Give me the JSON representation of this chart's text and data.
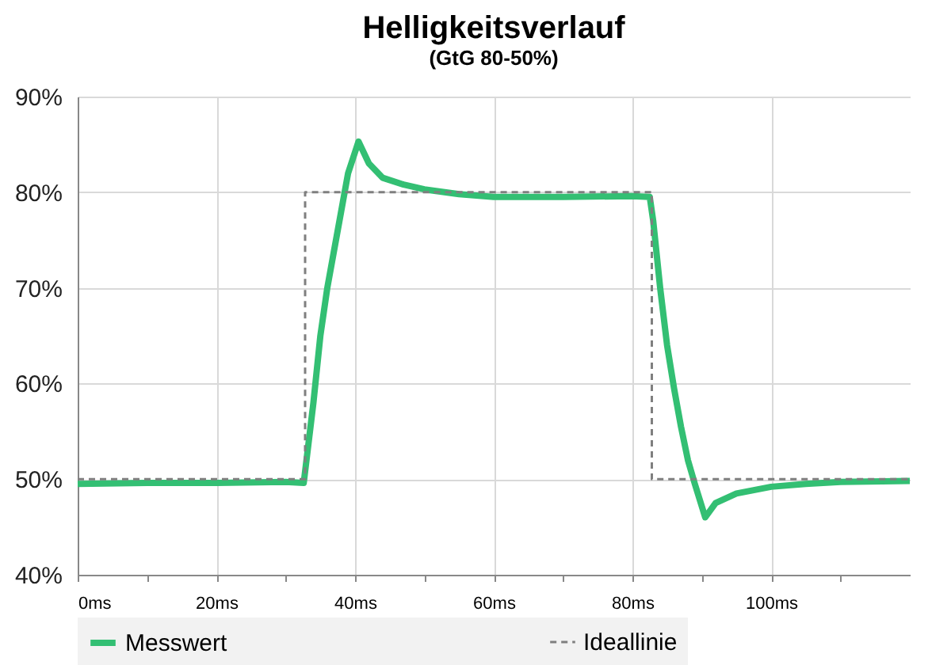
{
  "chart_data": {
    "type": "line",
    "title": "Helligkeitsverlauf",
    "subtitle": "(GtG 80-50%)",
    "xlim": [
      0,
      120
    ],
    "ylim": [
      40,
      90
    ],
    "xticks": [
      {
        "value": 0,
        "label": "0ms"
      },
      {
        "value": 10,
        "label": null
      },
      {
        "value": 20,
        "label": "20ms"
      },
      {
        "value": 30,
        "label": null
      },
      {
        "value": 40,
        "label": "40ms"
      },
      {
        "value": 50,
        "label": null
      },
      {
        "value": 60,
        "label": "60ms"
      },
      {
        "value": 70,
        "label": null
      },
      {
        "value": 80,
        "label": "80ms"
      },
      {
        "value": 90,
        "label": null
      },
      {
        "value": 100,
        "label": "100ms"
      },
      {
        "value": 110,
        "label": null
      }
    ],
    "yticks": [
      {
        "value": 40,
        "label": "40%"
      },
      {
        "value": 50,
        "label": "50%"
      },
      {
        "value": 60,
        "label": "60%"
      },
      {
        "value": 70,
        "label": "70%"
      },
      {
        "value": 80,
        "label": "80%"
      },
      {
        "value": 90,
        "label": "90%"
      }
    ],
    "grid": true,
    "legend": "bottom",
    "series": [
      {
        "name": "Messwert",
        "color": "#33bf73",
        "line_style": "solid",
        "x": [
          0,
          10,
          20,
          30,
          32.6,
          33,
          34,
          35,
          36,
          37,
          38,
          39,
          40.5,
          42,
          44,
          47,
          50,
          55,
          60,
          70,
          80,
          82.5,
          83,
          84,
          85,
          86,
          87,
          88,
          89,
          90.5,
          92,
          95,
          100,
          105,
          110,
          120
        ],
        "values": [
          49.5,
          49.6,
          49.6,
          49.7,
          49.6,
          52,
          58,
          65,
          70,
          74,
          78,
          82,
          85.3,
          83,
          81.5,
          80.8,
          80.3,
          79.8,
          79.5,
          79.5,
          79.6,
          79.5,
          77,
          70,
          64,
          59.5,
          55.5,
          52,
          49.5,
          46,
          47.5,
          48.5,
          49.2,
          49.5,
          49.7,
          49.8
        ]
      },
      {
        "name": "Ideallinie",
        "color": "#7f7f7f",
        "line_style": "dashed",
        "x": [
          0,
          32.8,
          32.8,
          82.8,
          82.8,
          120
        ],
        "values": [
          50,
          50,
          80,
          80,
          50,
          50
        ]
      }
    ]
  }
}
